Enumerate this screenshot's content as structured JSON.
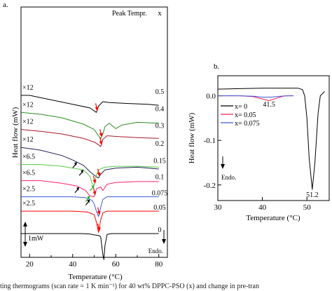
{
  "caption": "ting thermograms (scan rate = 1 K min⁻¹) for 40 wt% DPPC-PSO (x) and change in pre-tran",
  "chart_data": [
    {
      "id": "a",
      "panel_label": "a.",
      "type": "line",
      "xlabel": "Temperature (°C)",
      "ylabel": "Heat flow (mW)",
      "xlim": [
        16,
        84
      ],
      "x_ticks": [
        20,
        40,
        60,
        80
      ],
      "legend_header": "Peak Tempr.",
      "column_header": "x",
      "scale_bar_label": "1mW",
      "endo_label": "Endo.",
      "colors": {
        "axis": "#000000",
        "peak_arrow": "#ff0000",
        "pre_arrow": "#000000",
        "green_arrow": "#22aa22"
      },
      "series": [
        {
          "name": "0.5",
          "multiplier": "×12",
          "color": "#000000",
          "offset": 12.5,
          "points": [
            [
              16,
              0.0
            ],
            [
              20,
              0.0
            ],
            [
              30,
              -0.5
            ],
            [
              40,
              -1.0
            ],
            [
              48,
              -1.4
            ],
            [
              51,
              -1.9
            ],
            [
              52,
              -1.2
            ],
            [
              54,
              -0.7
            ],
            [
              57,
              -0.8
            ],
            [
              65,
              -0.9
            ],
            [
              75,
              -1.0
            ],
            [
              80,
              -1.1
            ]
          ]
        },
        {
          "name": "0.4",
          "multiplier": "×12",
          "color": "#2e8b22",
          "offset": 10.6,
          "points": [
            [
              16,
              0.0
            ],
            [
              25,
              -0.2
            ],
            [
              35,
              -0.6
            ],
            [
              45,
              -1.3
            ],
            [
              50,
              -1.9
            ],
            [
              52,
              -2.6
            ],
            [
              53,
              -2.9
            ],
            [
              54,
              -2.4
            ],
            [
              55,
              -1.6
            ],
            [
              57,
              -1.2
            ],
            [
              60,
              -1.8
            ],
            [
              63,
              -1.4
            ],
            [
              70,
              -1.1
            ],
            [
              80,
              -1.2
            ]
          ]
        },
        {
          "name": "0.3",
          "multiplier": "×12",
          "color": "#a61a2a",
          "offset": 8.7,
          "points": [
            [
              16,
              0.0
            ],
            [
              25,
              -0.2
            ],
            [
              35,
              -0.5
            ],
            [
              45,
              -1.0
            ],
            [
              50,
              -1.4
            ],
            [
              52,
              -1.7
            ],
            [
              53,
              -1.9
            ],
            [
              54,
              -1.1
            ],
            [
              56,
              -0.7
            ],
            [
              62,
              -0.8
            ],
            [
              70,
              -0.9
            ],
            [
              80,
              -1.0
            ]
          ]
        },
        {
          "name": "0.2",
          "multiplier": "×12",
          "color": "#1f1f55",
          "offset": 6.7,
          "points": [
            [
              16,
              0.0
            ],
            [
              25,
              -0.3
            ],
            [
              35,
              -0.9
            ],
            [
              40,
              -1.4
            ],
            [
              45,
              -2.0
            ],
            [
              48,
              -2.7
            ],
            [
              50,
              -3.1
            ],
            [
              52,
              -3.4
            ],
            [
              53,
              -3.0
            ],
            [
              55,
              -2.5
            ],
            [
              60,
              -2.3
            ],
            [
              70,
              -2.2
            ],
            [
              80,
              -2.4
            ]
          ]
        },
        {
          "name": "0.15",
          "multiplier": "×6.5",
          "color": "#55cc44",
          "offset": 4.8,
          "points": [
            [
              16,
              0.0
            ],
            [
              25,
              0.0
            ],
            [
              35,
              -0.2
            ],
            [
              45,
              -0.6
            ],
            [
              48,
              -1.3
            ],
            [
              49,
              -2.1
            ],
            [
              50,
              -2.3
            ],
            [
              51,
              -1.2
            ],
            [
              52,
              -0.6
            ],
            [
              55,
              -0.3
            ],
            [
              60,
              -0.2
            ],
            [
              70,
              -0.2
            ],
            [
              80,
              -0.3
            ]
          ]
        },
        {
          "name": "0.1",
          "multiplier": "×6.5",
          "color": "#ff2266",
          "offset": 3.0,
          "points": [
            [
              16,
              0.0
            ],
            [
              25,
              0.0
            ],
            [
              35,
              -0.3
            ],
            [
              42,
              -0.6
            ],
            [
              46,
              -1.1
            ],
            [
              48,
              -1.7
            ],
            [
              50,
              -1.8
            ],
            [
              51,
              -0.9
            ],
            [
              53,
              -0.7
            ],
            [
              54,
              -1.1
            ],
            [
              56,
              -0.4
            ],
            [
              60,
              -0.2
            ],
            [
              70,
              -0.1
            ],
            [
              80,
              -0.1
            ]
          ]
        },
        {
          "name": "0.075",
          "multiplier": "×2.5",
          "color": "#3b5bdb",
          "offset": 1.2,
          "points": [
            [
              16,
              0.0
            ],
            [
              40,
              0.0
            ],
            [
              46,
              -0.1
            ],
            [
              49,
              -0.4
            ],
            [
              50,
              -0.8
            ],
            [
              51,
              -1.6
            ],
            [
              52,
              -2.2
            ],
            [
              53,
              -1.2
            ],
            [
              54,
              -0.3
            ],
            [
              56,
              0.0
            ],
            [
              60,
              0.0
            ],
            [
              80,
              0.0
            ]
          ]
        },
        {
          "name": "0.05",
          "multiplier": "×2.5",
          "color": "#ff0000",
          "offset": -0.4,
          "points": [
            [
              16,
              0.0
            ],
            [
              40,
              0.0
            ],
            [
              47,
              -0.1
            ],
            [
              50,
              -0.4
            ],
            [
              51,
              -1.2
            ],
            [
              52,
              -2.4
            ],
            [
              53,
              -1.0
            ],
            [
              54,
              -0.2
            ],
            [
              56,
              0.0
            ],
            [
              80,
              0.0
            ]
          ]
        },
        {
          "name": "0",
          "multiplier": "",
          "color": "#000000",
          "offset": -2.9,
          "points": [
            [
              16,
              0.0
            ],
            [
              44,
              0.0
            ],
            [
              48,
              -0.05
            ],
            [
              50,
              -0.15
            ],
            [
              52,
              -0.2
            ],
            [
              53,
              -0.35
            ],
            [
              54,
              -2.3
            ],
            [
              54.5,
              -2.9
            ],
            [
              55,
              -1.3
            ],
            [
              56,
              -0.1
            ],
            [
              58,
              0.0
            ],
            [
              80,
              0.0
            ]
          ]
        }
      ]
    },
    {
      "id": "b",
      "panel_label": "b.",
      "type": "line",
      "xlabel": "Temperature (°C)",
      "ylabel": "Heat flow (mW)",
      "xlim": [
        30,
        55
      ],
      "ylim": [
        -0.235,
        0.045
      ],
      "x_ticks": [
        30,
        40,
        50
      ],
      "y_ticks": [
        0.0,
        -0.1,
        -0.2
      ],
      "y_tick_labels": [
        "0.0",
        "-0.1",
        "-0.2"
      ],
      "endo_label": "Endo.",
      "legend_position": "upper-left",
      "annotations": [
        {
          "text": "41.5",
          "x": 41.5,
          "y": -0.005
        },
        {
          "text": "51.2",
          "x": 51.2,
          "y": -0.208
        }
      ],
      "series": [
        {
          "name": "x= 0",
          "color": "#000000",
          "points": [
            [
              30,
              0.015
            ],
            [
              35,
              0.016
            ],
            [
              40,
              0.017
            ],
            [
              45,
              0.017
            ],
            [
              48,
              0.017
            ],
            [
              49,
              0.014
            ],
            [
              49.5,
              0.0
            ],
            [
              50,
              -0.05
            ],
            [
              50.5,
              -0.14
            ],
            [
              51.2,
              -0.21
            ],
            [
              51.8,
              -0.15
            ],
            [
              52.5,
              -0.04
            ],
            [
              53,
              0.0
            ],
            [
              54,
              0.01
            ]
          ]
        },
        {
          "name": "x= 0.05",
          "color": "#ff2255",
          "points": [
            [
              30,
              0.0
            ],
            [
              35,
              0.0
            ],
            [
              38,
              -0.002
            ],
            [
              40,
              -0.007
            ],
            [
              41.5,
              -0.011
            ],
            [
              43,
              -0.006
            ],
            [
              45,
              0.0
            ],
            [
              47,
              0.0
            ]
          ]
        },
        {
          "name": "x= 0.075",
          "color": "#3b5bdb",
          "points": [
            [
              30,
              0.0
            ],
            [
              35,
              0.0
            ],
            [
              38,
              -0.001
            ],
            [
              40,
              -0.003
            ],
            [
              42,
              -0.003
            ],
            [
              44,
              -0.001
            ],
            [
              46,
              0.0
            ],
            [
              47,
              0.0
            ]
          ]
        }
      ]
    }
  ]
}
